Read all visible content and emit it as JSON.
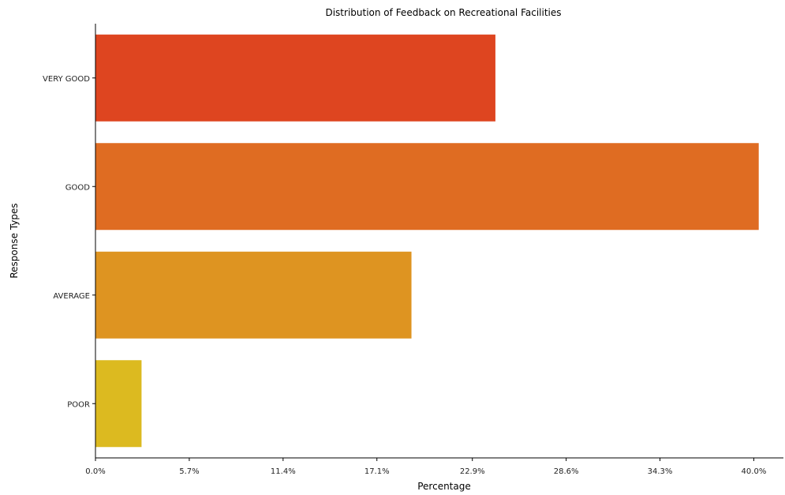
{
  "chart_data": {
    "type": "bar",
    "orientation": "horizontal",
    "title": "Distribution of  Feedback on Recreational Facilities",
    "xlabel": "Percentage",
    "ylabel": "Response Types",
    "categories": [
      "VERY GOOD",
      "GOOD",
      "AVERAGE",
      "POOR"
    ],
    "values": [
      24.3,
      40.3,
      19.2,
      2.8
    ],
    "colors": [
      "#de4520",
      "#df6c22",
      "#de9421",
      "#dcba20"
    ],
    "xlim": [
      0,
      41.8
    ],
    "xticks": [
      0,
      5.7,
      11.4,
      17.1,
      22.9,
      28.6,
      34.3,
      40.0
    ],
    "xtick_labels": [
      "0.0%",
      "5.7%",
      "11.4%",
      "17.1%",
      "22.9%",
      "28.6%",
      "34.3%",
      "40.0%"
    ],
    "grid": false,
    "legend": "none"
  }
}
